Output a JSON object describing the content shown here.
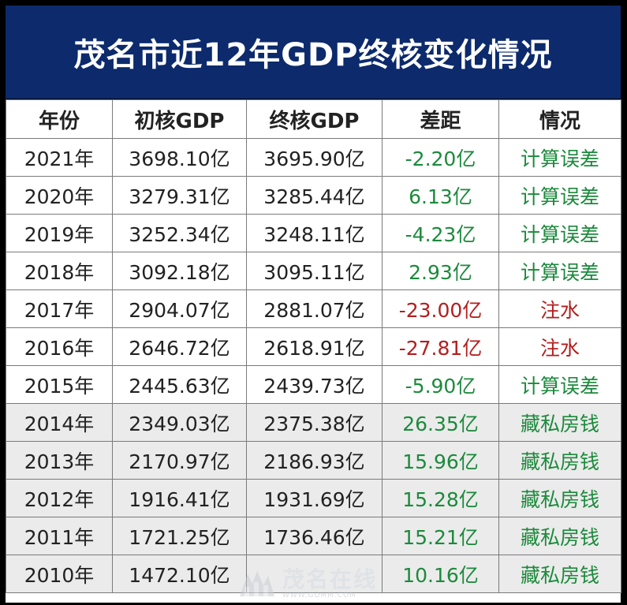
{
  "title": "茂名市近12年GDP终核变化情况",
  "colors": {
    "title_bg": "#0c2a6c",
    "green": "#1c8a3c",
    "red": "#b31e1e"
  },
  "table": {
    "headers": [
      "年份",
      "初核GDP",
      "终核GDP",
      "差距",
      "情况"
    ],
    "rows": [
      {
        "year": "2021年",
        "initial": "3698.10亿",
        "final": "3695.90亿",
        "diff": "-2.20亿",
        "status": "计算误差",
        "tone": "green"
      },
      {
        "year": "2020年",
        "initial": "3279.31亿",
        "final": "3285.44亿",
        "diff": "6.13亿",
        "status": "计算误差",
        "tone": "green"
      },
      {
        "year": "2019年",
        "initial": "3252.34亿",
        "final": "3248.11亿",
        "diff": "-4.23亿",
        "status": "计算误差",
        "tone": "green"
      },
      {
        "year": "2018年",
        "initial": "3092.18亿",
        "final": "3095.11亿",
        "diff": "2.93亿",
        "status": "计算误差",
        "tone": "green"
      },
      {
        "year": "2017年",
        "initial": "2904.07亿",
        "final": "2881.07亿",
        "diff": "-23.00亿",
        "status": "注水",
        "tone": "red"
      },
      {
        "year": "2016年",
        "initial": "2646.72亿",
        "final": "2618.91亿",
        "diff": "-27.81亿",
        "status": "注水",
        "tone": "red"
      },
      {
        "year": "2015年",
        "initial": "2445.63亿",
        "final": "2439.73亿",
        "diff": "-5.90亿",
        "status": "计算误差",
        "tone": "green"
      },
      {
        "year": "2014年",
        "initial": "2349.03亿",
        "final": "2375.38亿",
        "diff": "26.35亿",
        "status": "藏私房钱",
        "tone": "green"
      },
      {
        "year": "2013年",
        "initial": "2170.97亿",
        "final": "2186.93亿",
        "diff": "15.96亿",
        "status": "藏私房钱",
        "tone": "green"
      },
      {
        "year": "2012年",
        "initial": "1916.41亿",
        "final": "1931.69亿",
        "diff": "15.28亿",
        "status": "藏私房钱",
        "tone": "green"
      },
      {
        "year": "2011年",
        "initial": "1721.25亿",
        "final": "1736.46亿",
        "diff": "15.21亿",
        "status": "藏私房钱",
        "tone": "green"
      },
      {
        "year": "2010年",
        "initial": "1472.10亿",
        "final": "",
        "diff": "10.16亿",
        "status": "藏私房钱",
        "tone": "green"
      }
    ]
  },
  "watermark": {
    "main": "茂名在线",
    "sub": "WWW.GDMM.COM"
  }
}
